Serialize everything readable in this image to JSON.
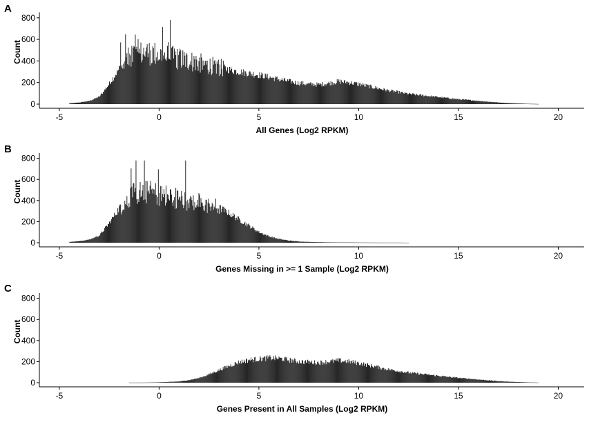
{
  "colors": {
    "bars": "#262626",
    "axis": "#000000",
    "background": "#ffffff"
  },
  "chart_data": [
    {
      "type": "histogram",
      "panel_label": "A",
      "xlabel": "All Genes (Log2 RPKM)",
      "ylabel": "Count",
      "xlim": [
        -6,
        21.3
      ],
      "ylim": [
        0,
        850
      ],
      "xticks": [
        -5,
        0,
        5,
        10,
        15,
        20
      ],
      "yticks": [
        0,
        200,
        400,
        600,
        800
      ],
      "xtick_labels": [
        "-5",
        "0",
        "5",
        "10",
        "15",
        "20"
      ],
      "ytick_labels": [
        "0",
        "200",
        "400",
        "600",
        "800"
      ],
      "bin_x": [
        -4.5,
        -4.0,
        -3.5,
        -3.0,
        -2.75,
        -2.5,
        -2.25,
        -2.0,
        -1.75,
        -1.5,
        -1.25,
        -1.0,
        -0.75,
        -0.5,
        -0.25,
        0.0,
        0.25,
        0.5,
        0.75,
        1.0,
        1.5,
        2.0,
        2.5,
        3.0,
        3.5,
        4.0,
        4.5,
        5.0,
        5.5,
        6.0,
        6.5,
        7.0,
        7.5,
        8.0,
        8.5,
        9.0,
        9.5,
        10.0,
        10.5,
        11.0,
        11.5,
        12.0,
        12.5,
        13.0,
        13.5,
        14.0,
        14.5,
        15.0,
        15.5,
        16.0,
        16.5,
        17.0,
        17.5,
        18.0,
        18.5,
        19.0
      ],
      "bin_y": [
        8,
        15,
        30,
        70,
        130,
        190,
        260,
        330,
        390,
        430,
        460,
        470,
        480,
        475,
        470,
        460,
        450,
        440,
        430,
        420,
        400,
        380,
        360,
        340,
        320,
        300,
        285,
        270,
        250,
        230,
        210,
        195,
        185,
        180,
        195,
        210,
        200,
        185,
        165,
        145,
        125,
        110,
        95,
        85,
        75,
        65,
        55,
        45,
        38,
        30,
        22,
        15,
        10,
        6,
        3,
        1
      ]
    },
    {
      "type": "histogram",
      "panel_label": "B",
      "xlabel": "Genes Missing in >= 1 Sample (Log2 RPKM)",
      "ylabel": "Count",
      "xlim": [
        -6,
        21.3
      ],
      "ylim": [
        0,
        850
      ],
      "xticks": [
        -5,
        0,
        5,
        10,
        15,
        20
      ],
      "yticks": [
        0,
        200,
        400,
        600,
        800
      ],
      "xtick_labels": [
        "-5",
        "0",
        "5",
        "10",
        "15",
        "20"
      ],
      "ytick_labels": [
        "0",
        "200",
        "400",
        "600",
        "800"
      ],
      "bin_x": [
        -4.5,
        -4.0,
        -3.5,
        -3.0,
        -2.75,
        -2.5,
        -2.25,
        -2.0,
        -1.75,
        -1.5,
        -1.25,
        -1.0,
        -0.75,
        -0.5,
        -0.25,
        0.0,
        0.25,
        0.5,
        0.75,
        1.0,
        1.5,
        2.0,
        2.5,
        3.0,
        3.5,
        4.0,
        4.5,
        5.0,
        5.5,
        6.0,
        6.5,
        7.0,
        7.5,
        8.0,
        9.0,
        10.0,
        11.0,
        12.0,
        12.5
      ],
      "bin_y": [
        8,
        15,
        30,
        70,
        130,
        190,
        260,
        330,
        390,
        430,
        460,
        470,
        480,
        475,
        470,
        460,
        450,
        440,
        430,
        420,
        400,
        380,
        360,
        330,
        280,
        220,
        160,
        100,
        60,
        35,
        20,
        12,
        8,
        5,
        3,
        2,
        1,
        1,
        0
      ]
    },
    {
      "type": "histogram",
      "panel_label": "C",
      "xlabel": "Genes Present in All Samples (Log2 RPKM)",
      "ylabel": "Count",
      "xlim": [
        -6,
        21.3
      ],
      "ylim": [
        0,
        850
      ],
      "xticks": [
        -5,
        0,
        5,
        10,
        15,
        20
      ],
      "yticks": [
        0,
        200,
        400,
        600,
        800
      ],
      "xtick_labels": [
        "-5",
        "0",
        "5",
        "10",
        "15",
        "20"
      ],
      "ytick_labels": [
        "0",
        "200",
        "400",
        "600",
        "800"
      ],
      "bin_x": [
        -1.5,
        -1.0,
        -0.5,
        0.0,
        0.5,
        1.0,
        1.5,
        2.0,
        2.5,
        3.0,
        3.5,
        4.0,
        4.5,
        5.0,
        5.5,
        6.0,
        6.5,
        7.0,
        7.5,
        8.0,
        8.5,
        9.0,
        9.5,
        10.0,
        10.5,
        11.0,
        11.5,
        12.0,
        12.5,
        13.0,
        13.5,
        14.0,
        14.5,
        15.0,
        15.5,
        16.0,
        16.5,
        17.0,
        17.5,
        18.0,
        18.5,
        19.0
      ],
      "bin_y": [
        1,
        1,
        2,
        4,
        8,
        12,
        25,
        45,
        80,
        120,
        160,
        195,
        215,
        225,
        235,
        230,
        215,
        200,
        195,
        190,
        200,
        210,
        200,
        185,
        165,
        145,
        125,
        110,
        95,
        85,
        75,
        65,
        55,
        45,
        38,
        30,
        22,
        15,
        10,
        6,
        3,
        1
      ]
    }
  ]
}
